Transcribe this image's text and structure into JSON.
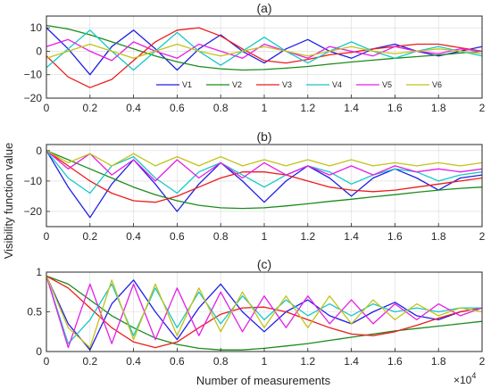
{
  "figure": {
    "ylabel": "Visibility function value",
    "xlabel": "Number of measurements",
    "x_exponent": "×10",
    "x_exponent_power": "4"
  },
  "colors": {
    "V1": "#1f1fe6",
    "V2": "#1a8c1a",
    "V3": "#ec1c1c",
    "V4": "#16c8c8",
    "V5": "#e61ee6",
    "V6": "#c2c21a",
    "axis": "#262626",
    "grid": "#d9d9d9"
  },
  "chart_data": [
    {
      "type": "line",
      "title": "(a)",
      "x_scale": 10000,
      "xlim": [
        0,
        2
      ],
      "ylim": [
        -20,
        15
      ],
      "x_ticks": [
        0,
        0.2,
        0.4,
        0.6,
        0.8,
        1,
        1.2,
        1.4,
        1.6,
        1.8,
        2
      ],
      "y_ticks": [
        -20,
        -10,
        0,
        10
      ],
      "grid": true,
      "legend": {
        "placement": "lower-center",
        "orientation": "horizontal",
        "entries": [
          "V1",
          "V2",
          "V3",
          "V4",
          "V5",
          "V6"
        ]
      },
      "x": [
        0,
        0.1,
        0.2,
        0.3,
        0.4,
        0.5,
        0.6,
        0.7,
        0.8,
        0.9,
        1.0,
        1.1,
        1.2,
        1.3,
        1.4,
        1.5,
        1.6,
        1.7,
        1.8,
        1.9,
        2.0
      ],
      "series": [
        {
          "name": "V1",
          "values": [
            10,
            1,
            -10,
            2,
            9,
            1,
            -8,
            1,
            7,
            0,
            -5,
            1,
            5,
            0,
            -3,
            1,
            3,
            0,
            -2,
            0,
            2
          ]
        },
        {
          "name": "V2",
          "values": [
            11,
            9.5,
            7,
            4,
            1,
            -2,
            -4.5,
            -6.5,
            -7.5,
            -8,
            -7.8,
            -7.2,
            -6.5,
            -5.5,
            -4.6,
            -3.8,
            -3,
            -2.3,
            -1.6,
            -0.8,
            0
          ]
        },
        {
          "name": "V3",
          "values": [
            -2,
            -11,
            -15.5,
            -12,
            -4,
            4,
            9,
            10,
            6.5,
            1,
            -4,
            -5,
            -3.5,
            -1.5,
            -0.5,
            1,
            2,
            3,
            3,
            1.5,
            0
          ]
        },
        {
          "name": "V4",
          "values": [
            -7,
            1,
            9,
            0,
            -8,
            0,
            8,
            0,
            -6,
            0,
            6,
            0,
            -5,
            0,
            4,
            0,
            -3,
            0,
            2,
            0,
            -2
          ]
        },
        {
          "name": "V5",
          "values": [
            2,
            5,
            0,
            -4,
            4,
            0,
            -3,
            3,
            0,
            -3,
            3,
            0,
            -3,
            2,
            0,
            -2,
            2,
            0,
            -1,
            1,
            0
          ]
        },
        {
          "name": "V6",
          "values": [
            -3,
            0,
            3,
            0,
            -3,
            0,
            3,
            0,
            -2,
            0,
            2,
            0,
            -2,
            0,
            2,
            0,
            -1,
            0,
            1,
            0,
            -1
          ]
        }
      ]
    },
    {
      "type": "line",
      "title": "(b)",
      "x_scale": 10000,
      "xlim": [
        0,
        2
      ],
      "ylim": [
        -25,
        2
      ],
      "x_ticks": [
        0,
        0.2,
        0.4,
        0.6,
        0.8,
        1,
        1.2,
        1.4,
        1.6,
        1.8,
        2
      ],
      "y_ticks": [
        -20,
        -10,
        0
      ],
      "grid": true,
      "x": [
        0,
        0.1,
        0.2,
        0.3,
        0.4,
        0.5,
        0.6,
        0.7,
        0.8,
        0.9,
        1.0,
        1.1,
        1.2,
        1.3,
        1.4,
        1.5,
        1.6,
        1.7,
        1.8,
        1.9,
        2.0
      ],
      "series": [
        {
          "name": "V1",
          "values": [
            0,
            -12,
            -22,
            -11,
            -3,
            -11,
            -20,
            -11,
            -4,
            -10,
            -17,
            -10,
            -5,
            -9,
            -15,
            -9,
            -6,
            -9,
            -13,
            -9,
            -8
          ]
        },
        {
          "name": "V2",
          "values": [
            0,
            -3,
            -6,
            -9,
            -12,
            -14.5,
            -16.5,
            -18,
            -18.8,
            -19,
            -18.8,
            -18.2,
            -17.5,
            -16.7,
            -16,
            -15.2,
            -14.5,
            -13.7,
            -13,
            -12.4,
            -12
          ]
        },
        {
          "name": "V3",
          "values": [
            0,
            -5,
            -10,
            -14,
            -16.5,
            -17,
            -15,
            -12,
            -9,
            -7,
            -7,
            -8,
            -10,
            -12,
            -13,
            -13.5,
            -13,
            -12,
            -11,
            -10,
            -9
          ]
        },
        {
          "name": "V4",
          "values": [
            0,
            -9,
            -14,
            -5,
            -2,
            -9,
            -14,
            -7,
            -4,
            -8,
            -12,
            -8,
            -5,
            -7,
            -11,
            -8,
            -6,
            -7,
            -10,
            -8,
            -7
          ]
        },
        {
          "name": "V5",
          "values": [
            0,
            -6,
            -1,
            -8,
            -3,
            -10,
            -3,
            -9,
            -4,
            -9,
            -4,
            -8,
            -5,
            -8,
            -5,
            -8,
            -5,
            -7,
            -6,
            -7,
            -6
          ]
        },
        {
          "name": "V6",
          "values": [
            0,
            -4,
            -1,
            -5,
            -1,
            -5,
            -2,
            -5,
            -2,
            -5,
            -3,
            -5,
            -3,
            -5,
            -3,
            -5,
            -4,
            -5,
            -4,
            -5,
            -4
          ]
        }
      ]
    },
    {
      "type": "line",
      "title": "(c)",
      "x_scale": 10000,
      "xlim": [
        0,
        2
      ],
      "ylim": [
        0,
        1
      ],
      "x_ticks": [
        0,
        0.2,
        0.4,
        0.6,
        0.8,
        1,
        1.2,
        1.4,
        1.6,
        1.8,
        2
      ],
      "y_ticks": [
        0,
        0.5,
        1
      ],
      "grid": true,
      "x": [
        0,
        0.1,
        0.2,
        0.3,
        0.4,
        0.5,
        0.6,
        0.7,
        0.8,
        0.9,
        1.0,
        1.1,
        1.2,
        1.3,
        1.4,
        1.5,
        1.6,
        1.7,
        1.8,
        1.9,
        2.0
      ],
      "series": [
        {
          "name": "V1",
          "values": [
            0.95,
            0.35,
            0.02,
            0.6,
            0.9,
            0.5,
            0.15,
            0.55,
            0.85,
            0.5,
            0.25,
            0.5,
            0.65,
            0.45,
            0.35,
            0.5,
            0.62,
            0.45,
            0.4,
            0.5,
            0.55
          ]
        },
        {
          "name": "V2",
          "values": [
            0.95,
            0.85,
            0.65,
            0.45,
            0.3,
            0.17,
            0.09,
            0.04,
            0.02,
            0.02,
            0.04,
            0.07,
            0.1,
            0.14,
            0.18,
            0.22,
            0.26,
            0.29,
            0.32,
            0.35,
            0.38
          ]
        },
        {
          "name": "V3",
          "values": [
            0.95,
            0.8,
            0.55,
            0.3,
            0.12,
            0.05,
            0.12,
            0.3,
            0.47,
            0.55,
            0.56,
            0.5,
            0.4,
            0.3,
            0.22,
            0.2,
            0.25,
            0.33,
            0.42,
            0.5,
            0.55
          ]
        },
        {
          "name": "V4",
          "values": [
            0.95,
            0.1,
            0.4,
            0.85,
            0.2,
            0.8,
            0.3,
            0.75,
            0.35,
            0.7,
            0.4,
            0.65,
            0.45,
            0.6,
            0.45,
            0.6,
            0.5,
            0.55,
            0.5,
            0.55,
            0.55
          ]
        },
        {
          "name": "V5",
          "values": [
            0.95,
            0.05,
            0.85,
            0.1,
            0.85,
            0.15,
            0.8,
            0.2,
            0.75,
            0.25,
            0.7,
            0.3,
            0.7,
            0.35,
            0.65,
            0.35,
            0.6,
            0.4,
            0.6,
            0.45,
            0.55
          ]
        },
        {
          "name": "V6",
          "values": [
            0.95,
            0.3,
            0.05,
            0.9,
            0.15,
            0.85,
            0.2,
            0.8,
            0.25,
            0.75,
            0.3,
            0.7,
            0.3,
            0.7,
            0.35,
            0.65,
            0.4,
            0.6,
            0.45,
            0.55,
            0.5
          ]
        }
      ]
    }
  ]
}
